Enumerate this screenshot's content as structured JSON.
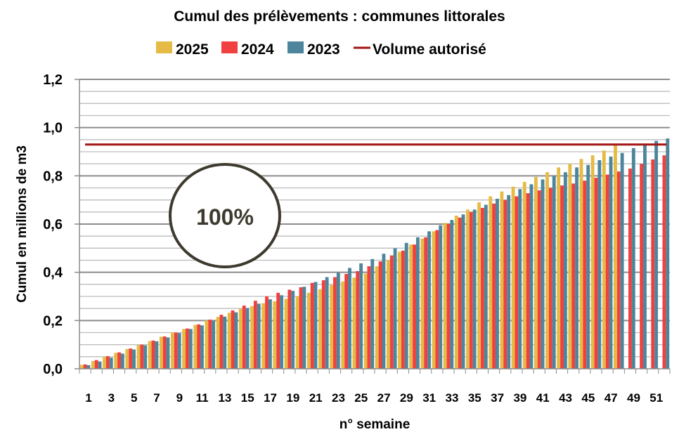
{
  "chart_data": {
    "type": "bar",
    "title": "Cumul des prélèvements : communes littorales",
    "xlabel": "n° semaine",
    "ylabel": "Cumul en millions de m3",
    "ylim": [
      0,
      1.2
    ],
    "yticks": [
      "0,0",
      "0,2",
      "0,4",
      "0,6",
      "0,8",
      "1,0",
      "1,2"
    ],
    "ytick_values": [
      0,
      0.2,
      0.4,
      0.6,
      0.8,
      1.0,
      1.2
    ],
    "grid": true,
    "legend_position": "top",
    "categories": [
      1,
      2,
      3,
      4,
      5,
      6,
      7,
      8,
      9,
      10,
      11,
      12,
      13,
      14,
      15,
      16,
      17,
      18,
      19,
      20,
      21,
      22,
      23,
      24,
      25,
      26,
      27,
      28,
      29,
      30,
      31,
      32,
      33,
      34,
      35,
      36,
      37,
      38,
      39,
      40,
      41,
      42,
      43,
      44,
      45,
      46,
      47,
      48,
      49,
      50,
      51,
      52
    ],
    "xtick_labels": [
      "1",
      "3",
      "5",
      "7",
      "9",
      "11",
      "13",
      "15",
      "17",
      "19",
      "21",
      "23",
      "25",
      "27",
      "29",
      "31",
      "33",
      "35",
      "37",
      "39",
      "41",
      "43",
      "45",
      "47",
      "49",
      "51"
    ],
    "series": [
      {
        "name": "2025",
        "color": "#e6bb45",
        "values": [
          0.016,
          0.032,
          0.05,
          0.066,
          0.082,
          0.098,
          0.115,
          0.133,
          0.15,
          0.165,
          0.182,
          0.2,
          0.215,
          0.232,
          0.249,
          0.26,
          0.272,
          0.28,
          0.29,
          0.3,
          0.315,
          0.33,
          0.347,
          0.362,
          0.378,
          0.395,
          0.425,
          0.45,
          0.485,
          0.515,
          0.54,
          0.57,
          0.605,
          0.635,
          0.66,
          0.69,
          0.715,
          0.735,
          0.755,
          0.775,
          0.795,
          0.815,
          0.835,
          0.85,
          0.87,
          0.885,
          0.905,
          0.93,
          null,
          null,
          null,
          null
        ]
      },
      {
        "name": "2024",
        "color": "#f0403f",
        "values": [
          0.018,
          0.036,
          0.052,
          0.068,
          0.084,
          0.1,
          0.117,
          0.134,
          0.15,
          0.167,
          0.184,
          0.204,
          0.224,
          0.242,
          0.262,
          0.282,
          0.3,
          0.315,
          0.328,
          0.338,
          0.356,
          0.367,
          0.38,
          0.393,
          0.405,
          0.425,
          0.445,
          0.47,
          0.49,
          0.515,
          0.545,
          0.575,
          0.6,
          0.627,
          0.65,
          0.667,
          0.685,
          0.7,
          0.715,
          0.728,
          0.74,
          0.75,
          0.76,
          0.768,
          0.78,
          0.792,
          0.805,
          0.818,
          0.83,
          0.85,
          0.868,
          0.885
        ]
      },
      {
        "name": "2023",
        "color": "#4d869c",
        "values": [
          0.015,
          0.03,
          0.046,
          0.063,
          0.08,
          0.097,
          0.114,
          0.13,
          0.148,
          0.165,
          0.18,
          0.198,
          0.216,
          0.234,
          0.252,
          0.27,
          0.288,
          0.305,
          0.323,
          0.34,
          0.36,
          0.38,
          0.398,
          0.418,
          0.437,
          0.455,
          0.477,
          0.5,
          0.522,
          0.545,
          0.57,
          0.595,
          0.617,
          0.64,
          0.66,
          0.68,
          0.705,
          0.72,
          0.745,
          0.765,
          0.785,
          0.8,
          0.815,
          0.835,
          0.845,
          0.865,
          0.88,
          0.895,
          0.915,
          0.93,
          0.945,
          0.955
        ]
      }
    ],
    "line_series": {
      "name": "Volume autorisé",
      "color": "#a31515",
      "value": 0.93
    },
    "annotation": {
      "text": "100%",
      "color": "#3e3a2e"
    }
  }
}
